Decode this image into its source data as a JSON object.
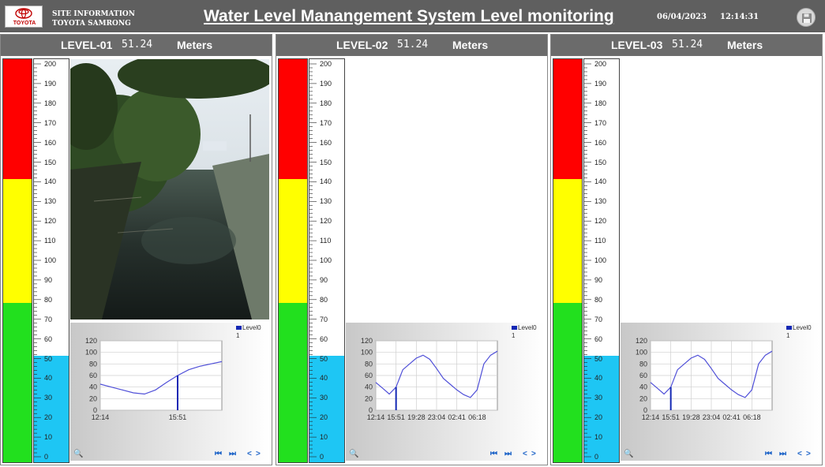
{
  "header": {
    "logo_text": "TOYOTA",
    "site_line1": "SITE INFORMATION",
    "site_line2": "TOYOTA SAMRONG",
    "title": "Water Level  Manangement System Level monitoring",
    "date": "06/04/2023",
    "time": "12:14:31"
  },
  "colors": {
    "alarm": "#ff0000",
    "warning": "#ffff00",
    "normal": "#22e01e",
    "water": "#1ec6f4",
    "series": "#5050d8"
  },
  "scale": {
    "max": 200,
    "red_from": 140,
    "yellow_from": 80,
    "labels": [
      "200",
      "190",
      "180",
      "170",
      "160",
      "150",
      "140",
      "130",
      "120",
      "110",
      "100",
      "90",
      "80",
      "70",
      "60",
      "50",
      "40",
      "30",
      "20",
      "10",
      "0"
    ]
  },
  "panels": [
    {
      "level_label": "LEVEL-01",
      "value": "51.24",
      "unit": "Meters",
      "level": 51.24,
      "has_photo": true,
      "chart": {
        "legend_name": "Level0",
        "legend_sub": "1",
        "y_ticks": [
          "120",
          "100",
          "80",
          "60",
          "40",
          "20",
          "0"
        ],
        "x_ticks": [
          "12:14",
          "15:51"
        ],
        "controls": {
          "search": "🔍",
          "first": "⏮",
          "last": "⏭",
          "prev": "<",
          "next": ">"
        }
      }
    },
    {
      "level_label": "LEVEL-02",
      "value": "51.24",
      "unit": "Meters",
      "level": 51.24,
      "has_photo": false,
      "chart": {
        "legend_name": "Level0",
        "legend_sub": "1",
        "y_ticks": [
          "120",
          "100",
          "80",
          "60",
          "40",
          "20",
          "0"
        ],
        "x_ticks": [
          "12:14",
          "15:51",
          "19:28",
          "23:04",
          "02:41",
          "06:18"
        ],
        "controls": {
          "search": "🔍",
          "first": "⏮",
          "last": "⏭",
          "prev": "<",
          "next": ">"
        }
      }
    },
    {
      "level_label": "LEVEL-03",
      "value": "51.24",
      "unit": "Meters",
      "level": 51.24,
      "has_photo": false,
      "chart": {
        "legend_name": "Level0",
        "legend_sub": "1",
        "y_ticks": [
          "120",
          "100",
          "80",
          "60",
          "40",
          "20",
          "0"
        ],
        "x_ticks": [
          "12:14",
          "15:51",
          "19:28",
          "23:04",
          "02:41",
          "06:18"
        ],
        "controls": {
          "search": "🔍",
          "first": "⏮",
          "last": "⏭",
          "prev": "<",
          "next": ">"
        }
      }
    }
  ],
  "chart_data": [
    {
      "type": "line",
      "series": [
        {
          "values": [
            45,
            40,
            35,
            30,
            28,
            35,
            48,
            60,
            70,
            76,
            80,
            84
          ]
        }
      ],
      "x": [
        "12:14",
        "",
        "",
        "",
        "",
        "",
        "",
        "15:51",
        "",
        "",
        "",
        ""
      ],
      "ylim": [
        0,
        120
      ],
      "marker_x": "15:51"
    },
    {
      "type": "line",
      "series": [
        {
          "values": [
            48,
            38,
            28,
            40,
            70,
            80,
            90,
            95,
            88,
            72,
            55,
            45,
            35,
            27,
            22,
            35,
            80,
            95,
            102
          ]
        }
      ],
      "x": [
        "12:14",
        "",
        "",
        "15:51",
        "",
        "",
        "19:28",
        "",
        "",
        "23:04",
        "",
        "",
        "02:41",
        "",
        "",
        "06:18",
        "",
        "",
        ""
      ],
      "ylim": [
        0,
        120
      ],
      "marker_x": "15:51"
    },
    {
      "type": "line",
      "series": [
        {
          "values": [
            48,
            38,
            28,
            40,
            70,
            80,
            90,
            95,
            88,
            72,
            55,
            45,
            35,
            27,
            22,
            35,
            80,
            95,
            102
          ]
        }
      ],
      "x": [
        "12:14",
        "",
        "",
        "15:51",
        "",
        "",
        "19:28",
        "",
        "",
        "23:04",
        "",
        "",
        "02:41",
        "",
        "",
        "06:18",
        "",
        "",
        ""
      ],
      "ylim": [
        0,
        120
      ],
      "marker_x": "15:51"
    }
  ]
}
